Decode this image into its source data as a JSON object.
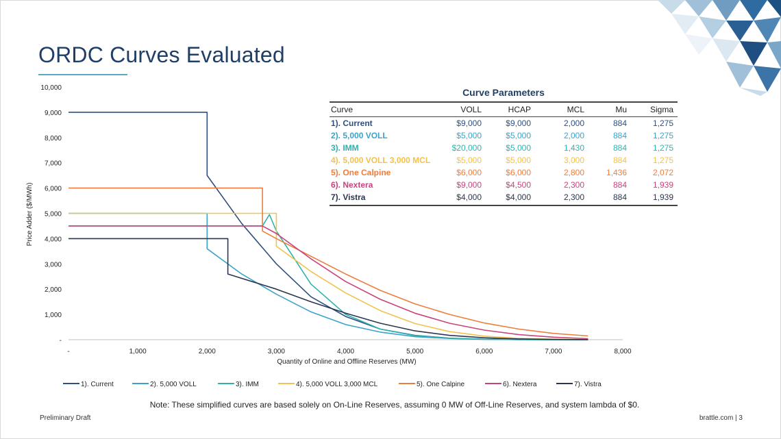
{
  "slide": {
    "title": "ORDC Curves Evaluated",
    "note": "Note: These simplified curves are based solely on On-Line Reserves, assuming 0 MW of Off-Line Reserves, and system lambda of $0.",
    "footer_left": "Preliminary Draft",
    "footer_right": "brattle.com | 3",
    "accent_color": "#1f3f66"
  },
  "parameters_table": {
    "title": "Curve Parameters",
    "columns": [
      "Curve",
      "VOLL",
      "HCAP",
      "MCL",
      "Mu",
      "Sigma"
    ],
    "rows": [
      {
        "curve": "1). Current",
        "voll": "$9,000",
        "hcap": "$9,000",
        "mcl": "2,000",
        "mu": "884",
        "sigma": "1,275",
        "color": "#2e4f80"
      },
      {
        "curve": "2). 5,000 VOLL",
        "voll": "$5,000",
        "hcap": "$5,000",
        "mcl": "2,000",
        "mu": "884",
        "sigma": "1,275",
        "color": "#3aa3c9"
      },
      {
        "curve": "3). IMM",
        "voll": "$20,000",
        "hcap": "$5,000",
        "mcl": "1,430",
        "mu": "884",
        "sigma": "1,275",
        "color": "#2fb3ad"
      },
      {
        "curve": "4). 5,000 VOLL 3,000 MCL",
        "voll": "$5,000",
        "hcap": "$5,000",
        "mcl": "3,000",
        "mu": "884",
        "sigma": "1,275",
        "color": "#f2c14e"
      },
      {
        "curve": "5). One Calpine",
        "voll": "$6,000",
        "hcap": "$6,000",
        "mcl": "2,800",
        "mu": "1,436",
        "sigma": "2,072",
        "color": "#ee7d3b"
      },
      {
        "curve": "6). Nextera",
        "voll": "$9,000",
        "hcap": "$4,500",
        "mcl": "2,300",
        "mu": "884",
        "sigma": "1,939",
        "color": "#c9437a"
      },
      {
        "curve": "7). Vistra",
        "voll": "$4,000",
        "hcap": "$4,000",
        "mcl": "2,300",
        "mu": "884",
        "sigma": "1,939",
        "color": "#2b3550"
      }
    ]
  },
  "chart_data": {
    "type": "line",
    "title": "",
    "xlabel": "Quantity of Online and Offline Reserves (MW)",
    "ylabel": "Price Adder ($/MWh)",
    "xlim": [
      0,
      8000
    ],
    "ylim": [
      0,
      10000
    ],
    "x_ticks": [
      0,
      1000,
      2000,
      3000,
      4000,
      5000,
      6000,
      7000,
      8000
    ],
    "x_tick_labels": [
      "-",
      "1,000",
      "2,000",
      "3,000",
      "4,000",
      "5,000",
      "6,000",
      "7,000",
      "8,000"
    ],
    "y_ticks": [
      0,
      1000,
      2000,
      3000,
      4000,
      5000,
      6000,
      7000,
      8000,
      9000,
      10000
    ],
    "y_tick_labels": [
      "-",
      "1,000",
      "2,000",
      "3,000",
      "4,000",
      "5,000",
      "6,000",
      "7,000",
      "8,000",
      "9,000",
      "10,000"
    ],
    "grid": false,
    "legend_position": "bottom",
    "series": [
      {
        "name": "1). Current",
        "color": "#2e4f80",
        "x": [
          0,
          2000,
          2000,
          2500,
          3000,
          3500,
          4000,
          4500,
          5000,
          5500,
          6000,
          6500,
          7000,
          7500
        ],
        "y": [
          9000,
          9000,
          6500,
          4600,
          3000,
          1700,
          920,
          420,
          170,
          60,
          20,
          6,
          2,
          0
        ]
      },
      {
        "name": "2). 5,000 VOLL",
        "color": "#3aa3c9",
        "x": [
          0,
          2000,
          2000,
          2500,
          3000,
          3500,
          4000,
          4500,
          5000,
          5500,
          6000,
          6500,
          7000,
          7500
        ],
        "y": [
          5000,
          5000,
          3600,
          2600,
          1800,
          1100,
          600,
          300,
          120,
          50,
          15,
          5,
          2,
          0
        ]
      },
      {
        "name": "3). IMM",
        "color": "#2fb3ad",
        "x": [
          0,
          2800,
          2900,
          3000,
          3500,
          4000,
          4500,
          5000,
          5500,
          6000,
          6500,
          7000,
          7500
        ],
        "y": [
          4500,
          4500,
          4950,
          4300,
          2200,
          1000,
          420,
          160,
          55,
          18,
          6,
          2,
          0
        ]
      },
      {
        "name": "4). 5,000 VOLL 3,000 MCL",
        "color": "#f2c14e",
        "x": [
          0,
          3000,
          3000,
          3500,
          4000,
          4500,
          5000,
          5500,
          6000,
          6500,
          7000,
          7500
        ],
        "y": [
          5000,
          5000,
          3700,
          2700,
          1850,
          1150,
          640,
          320,
          140,
          55,
          20,
          5
        ]
      },
      {
        "name": "5). One Calpine",
        "color": "#ee7d3b",
        "x": [
          0,
          2800,
          2800,
          3000,
          3500,
          4000,
          4500,
          5000,
          5500,
          6000,
          6500,
          7000,
          7500
        ],
        "y": [
          6000,
          6000,
          4300,
          4000,
          3300,
          2600,
          1950,
          1420,
          1000,
          660,
          420,
          250,
          150
        ]
      },
      {
        "name": "6). Nextera",
        "color": "#c9437a",
        "x": [
          0,
          2300,
          2800,
          3000,
          3500,
          4000,
          4500,
          5000,
          5500,
          6000,
          6500,
          7000,
          7500
        ],
        "y": [
          4500,
          4500,
          4500,
          4200,
          3200,
          2300,
          1600,
          1050,
          650,
          380,
          200,
          100,
          40
        ]
      },
      {
        "name": "7). Vistra",
        "color": "#2b3550",
        "x": [
          0,
          2300,
          2300,
          3000,
          3500,
          4000,
          4500,
          5000,
          5500,
          6000,
          6500,
          7000,
          7500
        ],
        "y": [
          4000,
          4000,
          2600,
          2000,
          1500,
          1050,
          650,
          350,
          170,
          75,
          30,
          10,
          3
        ]
      }
    ]
  }
}
